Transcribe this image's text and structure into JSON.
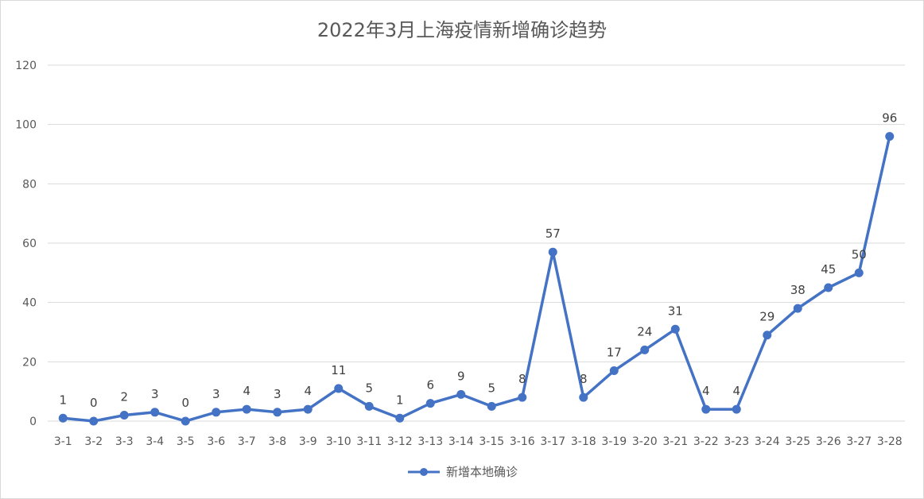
{
  "chart_data": {
    "type": "line",
    "title": "2022年3月上海疫情新增确诊趋势",
    "categories": [
      "3-1",
      "3-2",
      "3-3",
      "3-4",
      "3-5",
      "3-6",
      "3-7",
      "3-8",
      "3-9",
      "3-10",
      "3-11",
      "3-12",
      "3-13",
      "3-14",
      "3-15",
      "3-16",
      "3-17",
      "3-18",
      "3-19",
      "3-20",
      "3-21",
      "3-22",
      "3-23",
      "3-24",
      "3-25",
      "3-26",
      "3-27",
      "3-28"
    ],
    "series": [
      {
        "name": "新增本地确诊",
        "values": [
          1,
          0,
          2,
          3,
          0,
          3,
          4,
          3,
          4,
          11,
          5,
          1,
          6,
          9,
          5,
          8,
          57,
          8,
          17,
          24,
          31,
          4,
          4,
          29,
          38,
          45,
          50,
          96
        ]
      }
    ],
    "ylim": [
      0,
      120
    ],
    "yticks": [
      0,
      20,
      40,
      60,
      80,
      100,
      120
    ],
    "xlabel": "",
    "ylabel": "",
    "grid": true,
    "legend_position": "bottom",
    "line_color": "#4472c4",
    "grid_color": "#d9d9d9",
    "text_color": "#595959"
  }
}
